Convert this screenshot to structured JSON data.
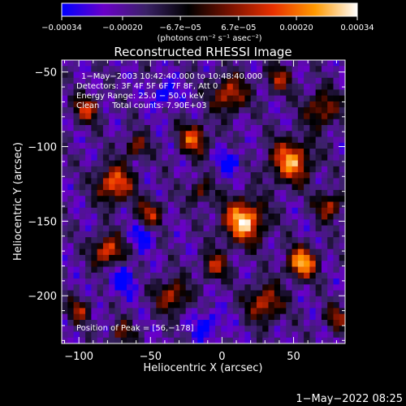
{
  "chart_data": {
    "type": "heatmap",
    "title": "Reconstructed RHESSI Image",
    "xlabel": "Heliocentric X (arcsec)",
    "ylabel": "Heliocentric Y (arcsec)",
    "xlim": [
      -112,
      86
    ],
    "ylim": [
      -232,
      -42
    ],
    "x_ticks": [
      -100,
      -50,
      0,
      50
    ],
    "x_tick_labels": [
      "−100",
      "−50",
      "0",
      "50"
    ],
    "y_ticks": [
      -200,
      -150,
      -100,
      -50
    ],
    "y_tick_labels": [
      "−200",
      "−150",
      "−100",
      "−50"
    ],
    "colorbar": {
      "range": [
        -0.00034,
        0.00034
      ],
      "ticks": [
        -0.00034,
        -0.0002,
        -6.7e-05,
        6.7e-05,
        0.0002,
        0.00034
      ],
      "tick_labels": [
        "−0.00034",
        "−0.00020",
        "−6.7e−05",
        "6.7e−05",
        "0.00020",
        "0.00034"
      ],
      "unit_label": "(photons cm⁻² s⁻¹ asec⁻²)",
      "colors": [
        "#0000ff",
        "#6a00c8",
        "#3a2266",
        "#000000",
        "#7a1200",
        "#e83000",
        "#ff9900",
        "#ffffff"
      ]
    },
    "annotations": [
      "1−May−2003 10:42:40.000 to 10:48:40.000",
      "Detectors: 3F 4F 5F 6F 7F 8F, Att 0",
      "Energy Range: 25.0 − 50.0 keV",
      "Clean     Total counts: 7.90E+03"
    ],
    "peak_label": "Position of Peak = [56,−178]",
    "peak": {
      "x": 56,
      "y": -178
    }
  },
  "footer_timestamp": "1−May−2022 08:25"
}
